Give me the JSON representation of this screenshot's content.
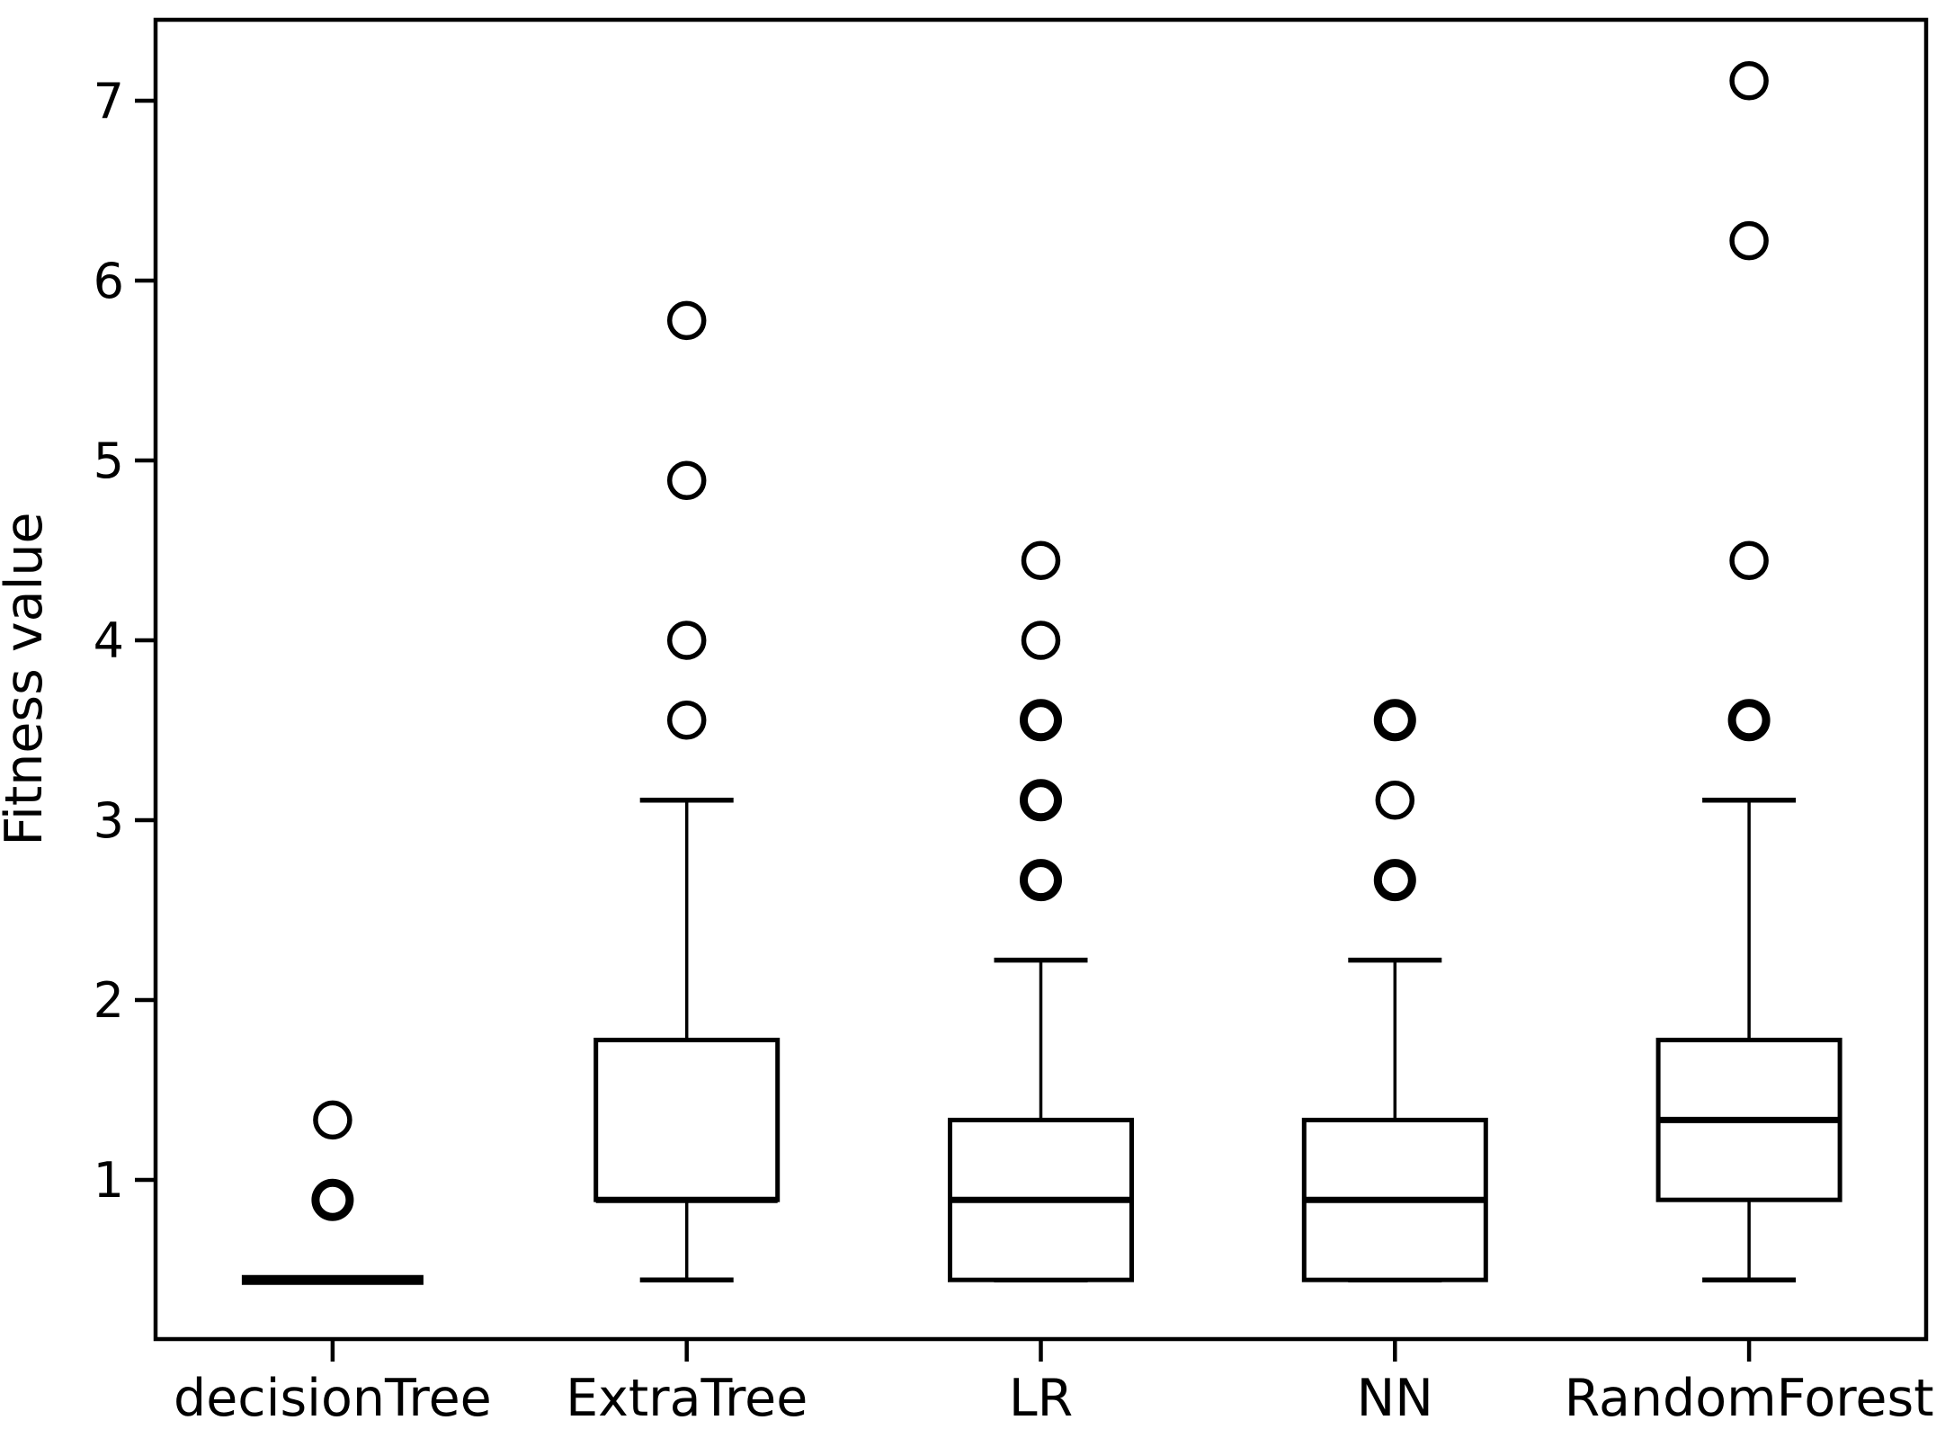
{
  "chart_data": {
    "type": "boxplot",
    "title": "",
    "xlabel": "",
    "ylabel": "Fitness value",
    "grid": false,
    "legend": null,
    "ylim": [
      0.12,
      7.46
    ],
    "yticks": [
      1,
      2,
      3,
      4,
      5,
      6,
      7
    ],
    "categories": [
      "decisionTree",
      "ExtraTree",
      "LR",
      "NN",
      "RandomForest"
    ],
    "series": [
      {
        "name": "decisionTree",
        "whisker_low": 0.444,
        "q1": 0.444,
        "median": 0.444,
        "q3": 0.444,
        "whisker_high": 0.444,
        "collapsed": true,
        "outliers": [
          {
            "value": 1.333,
            "double": false
          },
          {
            "value": 0.889,
            "double": true
          }
        ]
      },
      {
        "name": "ExtraTree",
        "whisker_low": 0.444,
        "q1": 0.889,
        "median": 0.889,
        "q3": 1.778,
        "whisker_high": 3.111,
        "collapsed": false,
        "outliers": [
          {
            "value": 5.778,
            "double": false
          },
          {
            "value": 4.889,
            "double": false
          },
          {
            "value": 4.0,
            "double": false
          },
          {
            "value": 3.556,
            "double": false
          }
        ]
      },
      {
        "name": "LR",
        "whisker_low": 0.444,
        "q1": 0.444,
        "median": 0.889,
        "q3": 1.333,
        "whisker_high": 2.222,
        "collapsed": false,
        "outliers": [
          {
            "value": 4.444,
            "double": false
          },
          {
            "value": 4.0,
            "double": false
          },
          {
            "value": 3.556,
            "double": true
          },
          {
            "value": 3.111,
            "double": true
          },
          {
            "value": 2.667,
            "double": true
          }
        ]
      },
      {
        "name": "NN",
        "whisker_low": 0.444,
        "q1": 0.444,
        "median": 0.889,
        "q3": 1.333,
        "whisker_high": 2.222,
        "collapsed": false,
        "outliers": [
          {
            "value": 3.556,
            "double": true
          },
          {
            "value": 3.111,
            "double": false
          },
          {
            "value": 2.667,
            "double": true
          }
        ]
      },
      {
        "name": "RandomForest",
        "whisker_low": 0.444,
        "q1": 0.889,
        "median": 1.333,
        "q3": 1.778,
        "whisker_high": 3.111,
        "collapsed": false,
        "outliers": [
          {
            "value": 7.111,
            "double": false
          },
          {
            "value": 6.222,
            "double": false
          },
          {
            "value": 4.444,
            "double": false
          },
          {
            "value": 3.556,
            "double": true
          }
        ]
      }
    ],
    "colors": {
      "stroke": "#000000",
      "background": "#ffffff",
      "box_fill": "#ffffff"
    }
  }
}
